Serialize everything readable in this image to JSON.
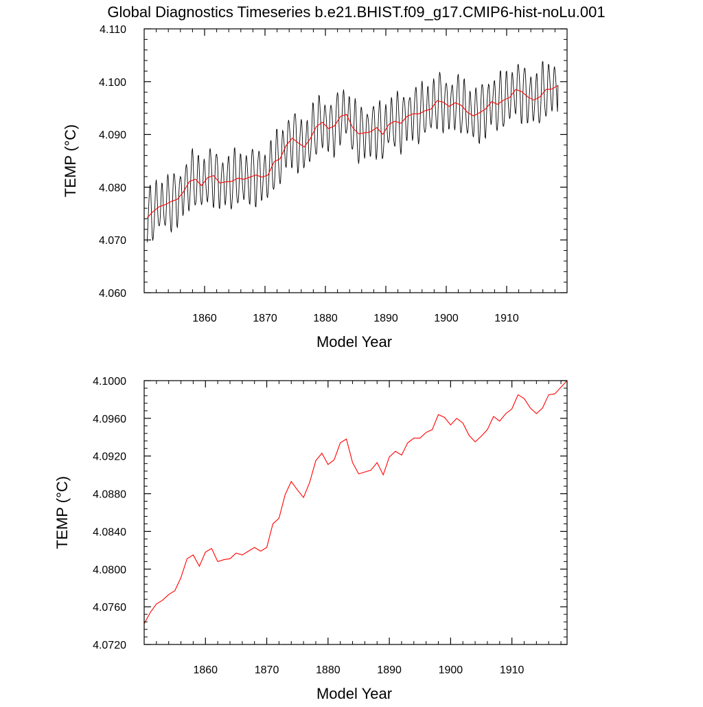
{
  "figure": {
    "title": "Global Diagnostics Timeseries b.e21.BHIST.f09_g17.CMIP6-hist-noLu.001",
    "colors": {
      "monthly": "#000000",
      "annual": "#ff0000",
      "axes": "#000000",
      "background": "#ffffff"
    }
  },
  "chart_data": [
    {
      "type": "line",
      "xlabel": "Model Year",
      "ylabel": "TEMP (°C)",
      "xlim": [
        1850,
        1920
      ],
      "ylim": [
        4.06,
        4.11
      ],
      "xticks": [
        1860,
        1870,
        1880,
        1890,
        1900,
        1910
      ],
      "xtick_labels": [
        "1860",
        "1870",
        "1880",
        "1890",
        "1900",
        "1910"
      ],
      "yticks": [
        4.06,
        4.07,
        4.08,
        4.09,
        4.1,
        4.11
      ],
      "ytick_labels": [
        "4.060",
        "4.070",
        "4.080",
        "4.090",
        "4.100",
        "4.110"
      ],
      "grid": false,
      "legend": "none",
      "series": [
        {
          "color": "#000000",
          "kind": "monthly",
          "seasonal_amplitude": 0.0048,
          "phase_months": 2.5,
          "x": [
            1850.5,
            1851.5,
            1852.5,
            1853.5,
            1854.5,
            1855.5,
            1856.5,
            1857.5,
            1858.5,
            1859.5,
            1860.5,
            1861.5,
            1862.5,
            1863.5,
            1864.5,
            1865.5,
            1866.5,
            1867.5,
            1868.5,
            1869.5,
            1870.5,
            1871.5,
            1872.5,
            1873.5,
            1874.5,
            1875.5,
            1876.5,
            1877.5,
            1878.5,
            1879.5,
            1880.5,
            1881.5,
            1882.5,
            1883.5,
            1884.5,
            1885.5,
            1886.5,
            1887.5,
            1888.5,
            1889.5,
            1890.5,
            1891.5,
            1892.5,
            1893.5,
            1894.5,
            1895.5,
            1896.5,
            1897.5,
            1898.5,
            1899.5,
            1900.5,
            1901.5,
            1902.5,
            1903.5,
            1904.5,
            1905.5,
            1906.5,
            1907.5,
            1908.5,
            1909.5,
            1910.5,
            1911.5,
            1912.5,
            1913.5,
            1914.5,
            1915.5,
            1916.5,
            1917.5,
            1918.5
          ],
          "y": [
            4.0742,
            4.0754,
            4.0763,
            4.0767,
            4.0773,
            4.0777,
            4.0791,
            4.0811,
            4.0815,
            4.0803,
            4.0818,
            4.0822,
            4.0808,
            4.081,
            4.0811,
            4.0817,
            4.0815,
            4.0819,
            4.0823,
            4.0819,
            4.0823,
            4.0848,
            4.0854,
            4.0879,
            4.0893,
            4.0884,
            4.0876,
            4.0892,
            4.0915,
            4.0923,
            4.0911,
            4.0916,
            4.0934,
            4.0938,
            4.0913,
            4.0901,
            4.0903,
            4.0905,
            4.0913,
            4.09,
            4.0919,
            4.0925,
            4.0921,
            4.0934,
            4.0939,
            4.0939,
            4.0945,
            4.0948,
            4.0964,
            4.0961,
            4.0953,
            4.096,
            4.0955,
            4.0942,
            4.0935,
            4.0941,
            4.0948,
            4.0962,
            4.0957,
            4.0965,
            4.097,
            4.0985,
            4.0981,
            4.0971,
            4.0965,
            4.0971,
            4.0985,
            4.0986,
            4.0993
          ]
        },
        {
          "color": "#ff0000",
          "kind": "annual",
          "x": [
            1850.5,
            1851.5,
            1852.5,
            1853.5,
            1854.5,
            1855.5,
            1856.5,
            1857.5,
            1858.5,
            1859.5,
            1860.5,
            1861.5,
            1862.5,
            1863.5,
            1864.5,
            1865.5,
            1866.5,
            1867.5,
            1868.5,
            1869.5,
            1870.5,
            1871.5,
            1872.5,
            1873.5,
            1874.5,
            1875.5,
            1876.5,
            1877.5,
            1878.5,
            1879.5,
            1880.5,
            1881.5,
            1882.5,
            1883.5,
            1884.5,
            1885.5,
            1886.5,
            1887.5,
            1888.5,
            1889.5,
            1890.5,
            1891.5,
            1892.5,
            1893.5,
            1894.5,
            1895.5,
            1896.5,
            1897.5,
            1898.5,
            1899.5,
            1900.5,
            1901.5,
            1902.5,
            1903.5,
            1904.5,
            1905.5,
            1906.5,
            1907.5,
            1908.5,
            1909.5,
            1910.5,
            1911.5,
            1912.5,
            1913.5,
            1914.5,
            1915.5,
            1916.5,
            1917.5,
            1918.5
          ],
          "y": [
            4.0742,
            4.0754,
            4.0763,
            4.0767,
            4.0773,
            4.0777,
            4.0791,
            4.0811,
            4.0815,
            4.0803,
            4.0818,
            4.0822,
            4.0808,
            4.081,
            4.0811,
            4.0817,
            4.0815,
            4.0819,
            4.0823,
            4.0819,
            4.0823,
            4.0848,
            4.0854,
            4.0879,
            4.0893,
            4.0884,
            4.0876,
            4.0892,
            4.0915,
            4.0923,
            4.0911,
            4.0916,
            4.0934,
            4.0938,
            4.0913,
            4.0901,
            4.0903,
            4.0905,
            4.0913,
            4.09,
            4.0919,
            4.0925,
            4.0921,
            4.0934,
            4.0939,
            4.0939,
            4.0945,
            4.0948,
            4.0964,
            4.0961,
            4.0953,
            4.096,
            4.0955,
            4.0942,
            4.0935,
            4.0941,
            4.0948,
            4.0962,
            4.0957,
            4.0965,
            4.097,
            4.0985,
            4.0981,
            4.0971,
            4.0965,
            4.0971,
            4.0985,
            4.0986,
            4.0993
          ]
        }
      ]
    },
    {
      "type": "line",
      "xlabel": "Model Year",
      "ylabel": "TEMP (°C)",
      "xlim": [
        1850,
        1919
      ],
      "ylim": [
        4.072,
        4.1
      ],
      "xticks": [
        1860,
        1870,
        1880,
        1890,
        1900,
        1910
      ],
      "xtick_labels": [
        "1860",
        "1870",
        "1880",
        "1890",
        "1900",
        "1910"
      ],
      "yticks": [
        4.072,
        4.076,
        4.08,
        4.084,
        4.088,
        4.092,
        4.096,
        4.1
      ],
      "ytick_labels": [
        "4.0720",
        "4.0760",
        "4.0800",
        "4.0840",
        "4.0880",
        "4.0920",
        "4.0960",
        "4.1000"
      ],
      "grid": false,
      "legend": "none",
      "series": [
        {
          "color": "#ff0000",
          "kind": "annual",
          "x": [
            1850,
            1851,
            1852,
            1853,
            1854,
            1855,
            1856,
            1857,
            1858,
            1859,
            1860,
            1861,
            1862,
            1863,
            1864,
            1865,
            1866,
            1867,
            1868,
            1869,
            1870,
            1871,
            1872,
            1873,
            1874,
            1875,
            1876,
            1877,
            1878,
            1879,
            1880,
            1881,
            1882,
            1883,
            1884,
            1885,
            1886,
            1887,
            1888,
            1889,
            1890,
            1891,
            1892,
            1893,
            1894,
            1895,
            1896,
            1897,
            1898,
            1899,
            1900,
            1901,
            1902,
            1903,
            1904,
            1905,
            1906,
            1907,
            1908,
            1909,
            1910,
            1911,
            1912,
            1913,
            1914,
            1915,
            1916,
            1917,
            1918,
            1919
          ],
          "y": [
            4.0742,
            4.0754,
            4.0763,
            4.0767,
            4.0773,
            4.0777,
            4.0791,
            4.0811,
            4.0815,
            4.0803,
            4.0818,
            4.0822,
            4.0808,
            4.081,
            4.0811,
            4.0817,
            4.0815,
            4.0819,
            4.0823,
            4.0819,
            4.0823,
            4.0848,
            4.0854,
            4.0879,
            4.0893,
            4.0884,
            4.0876,
            4.0892,
            4.0915,
            4.0923,
            4.0911,
            4.0916,
            4.0934,
            4.0938,
            4.0913,
            4.0901,
            4.0903,
            4.0905,
            4.0913,
            4.09,
            4.0919,
            4.0925,
            4.0921,
            4.0934,
            4.0939,
            4.0939,
            4.0945,
            4.0948,
            4.0964,
            4.0961,
            4.0953,
            4.096,
            4.0955,
            4.0942,
            4.0935,
            4.0941,
            4.0948,
            4.0962,
            4.0957,
            4.0965,
            4.097,
            4.0985,
            4.0981,
            4.0971,
            4.0965,
            4.0971,
            4.0985,
            4.0986,
            4.0993,
            4.1
          ]
        }
      ]
    }
  ]
}
